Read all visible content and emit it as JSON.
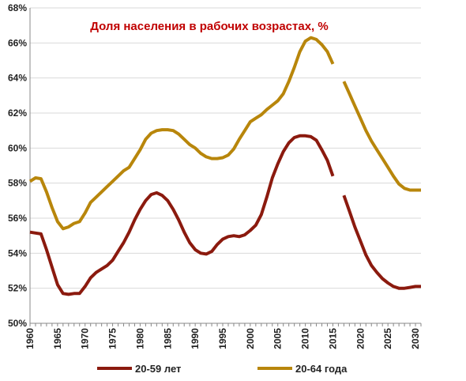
{
  "chart_data": {
    "type": "line",
    "title": "Доля населения в рабочих возрастах, %",
    "xlabel": "",
    "ylabel": "",
    "xlim": [
      1960,
      2031
    ],
    "ylim": [
      50,
      68
    ],
    "x_ticks": [
      1960,
      1965,
      1970,
      1975,
      1980,
      1985,
      1990,
      1995,
      2000,
      2005,
      2010,
      2015,
      2020,
      2025,
      2030
    ],
    "y_ticks": [
      50,
      52,
      54,
      56,
      58,
      60,
      62,
      64,
      66,
      68
    ],
    "y_tick_labels": [
      "50%",
      "52%",
      "54%",
      "56%",
      "58%",
      "60%",
      "62%",
      "64%",
      "66%",
      "68%"
    ],
    "grid": true,
    "legend_position": "bottom",
    "series": [
      {
        "name": "20-59 лет",
        "color": "#8B1A0E",
        "segments": [
          [
            [
              1960,
              55.2
            ],
            [
              1961,
              55.15
            ],
            [
              1962,
              55.1
            ],
            [
              1963,
              54.2
            ],
            [
              1964,
              53.2
            ],
            [
              1965,
              52.2
            ],
            [
              1966,
              51.7
            ],
            [
              1967,
              51.65
            ],
            [
              1968,
              51.7
            ],
            [
              1969,
              51.7
            ],
            [
              1970,
              52.1
            ],
            [
              1971,
              52.6
            ],
            [
              1972,
              52.9
            ],
            [
              1973,
              53.1
            ],
            [
              1974,
              53.3
            ],
            [
              1975,
              53.6
            ],
            [
              1976,
              54.1
            ],
            [
              1977,
              54.6
            ],
            [
              1978,
              55.2
            ],
            [
              1979,
              55.9
            ],
            [
              1980,
              56.5
            ],
            [
              1981,
              57.0
            ],
            [
              1982,
              57.35
            ],
            [
              1983,
              57.45
            ],
            [
              1984,
              57.3
            ],
            [
              1985,
              57.0
            ],
            [
              1986,
              56.5
            ],
            [
              1987,
              55.9
            ],
            [
              1988,
              55.2
            ],
            [
              1989,
              54.6
            ],
            [
              1990,
              54.2
            ],
            [
              1991,
              54.0
            ],
            [
              1992,
              53.95
            ],
            [
              1993,
              54.1
            ],
            [
              1994,
              54.5
            ],
            [
              1995,
              54.8
            ],
            [
              1996,
              54.95
            ],
            [
              1997,
              55.0
            ],
            [
              1998,
              54.95
            ],
            [
              1999,
              55.05
            ],
            [
              2000,
              55.3
            ],
            [
              2001,
              55.6
            ],
            [
              2002,
              56.2
            ],
            [
              2003,
              57.2
            ],
            [
              2004,
              58.3
            ],
            [
              2005,
              59.1
            ],
            [
              2006,
              59.8
            ],
            [
              2007,
              60.3
            ],
            [
              2008,
              60.6
            ],
            [
              2009,
              60.7
            ],
            [
              2010,
              60.7
            ],
            [
              2011,
              60.65
            ],
            [
              2012,
              60.45
            ],
            [
              2013,
              59.9
            ],
            [
              2014,
              59.3
            ],
            [
              2015,
              58.4
            ]
          ],
          [
            [
              2017,
              57.3
            ],
            [
              2018,
              56.4
            ],
            [
              2019,
              55.5
            ],
            [
              2020,
              54.7
            ],
            [
              2021,
              53.9
            ],
            [
              2022,
              53.3
            ],
            [
              2023,
              52.9
            ],
            [
              2024,
              52.55
            ],
            [
              2025,
              52.3
            ],
            [
              2026,
              52.1
            ],
            [
              2027,
              52.0
            ],
            [
              2028,
              52.0
            ],
            [
              2029,
              52.05
            ],
            [
              2030,
              52.1
            ],
            [
              2031,
              52.1
            ]
          ]
        ]
      },
      {
        "name": "20-64 года",
        "color": "#B8860B",
        "segments": [
          [
            [
              1960,
              58.1
            ],
            [
              1961,
              58.3
            ],
            [
              1962,
              58.25
            ],
            [
              1963,
              57.5
            ],
            [
              1964,
              56.6
            ],
            [
              1965,
              55.8
            ],
            [
              1966,
              55.4
            ],
            [
              1967,
              55.5
            ],
            [
              1968,
              55.7
            ],
            [
              1969,
              55.8
            ],
            [
              1970,
              56.3
            ],
            [
              1971,
              56.9
            ],
            [
              1972,
              57.2
            ],
            [
              1973,
              57.5
            ],
            [
              1974,
              57.8
            ],
            [
              1975,
              58.1
            ],
            [
              1976,
              58.4
            ],
            [
              1977,
              58.7
            ],
            [
              1978,
              58.9
            ],
            [
              1979,
              59.4
            ],
            [
              1980,
              59.9
            ],
            [
              1981,
              60.5
            ],
            [
              1982,
              60.85
            ],
            [
              1983,
              61.0
            ],
            [
              1984,
              61.05
            ],
            [
              1985,
              61.05
            ],
            [
              1986,
              61.0
            ],
            [
              1987,
              60.8
            ],
            [
              1988,
              60.5
            ],
            [
              1989,
              60.2
            ],
            [
              1990,
              60.0
            ],
            [
              1991,
              59.7
            ],
            [
              1992,
              59.5
            ],
            [
              1993,
              59.4
            ],
            [
              1994,
              59.4
            ],
            [
              1995,
              59.45
            ],
            [
              1996,
              59.6
            ],
            [
              1997,
              59.95
            ],
            [
              1998,
              60.5
            ],
            [
              1999,
              61.0
            ],
            [
              2000,
              61.5
            ],
            [
              2001,
              61.7
            ],
            [
              2002,
              61.9
            ],
            [
              2003,
              62.2
            ],
            [
              2004,
              62.45
            ],
            [
              2005,
              62.7
            ],
            [
              2006,
              63.1
            ],
            [
              2007,
              63.8
            ],
            [
              2008,
              64.6
            ],
            [
              2009,
              65.5
            ],
            [
              2010,
              66.1
            ],
            [
              2011,
              66.3
            ],
            [
              2012,
              66.2
            ],
            [
              2013,
              65.9
            ],
            [
              2014,
              65.5
            ],
            [
              2015,
              64.8
            ]
          ],
          [
            [
              2017,
              63.8
            ],
            [
              2018,
              63.1
            ],
            [
              2019,
              62.4
            ],
            [
              2020,
              61.7
            ],
            [
              2021,
              61.0
            ],
            [
              2022,
              60.4
            ],
            [
              2023,
              59.9
            ],
            [
              2024,
              59.4
            ],
            [
              2025,
              58.9
            ],
            [
              2026,
              58.4
            ],
            [
              2027,
              57.95
            ],
            [
              2028,
              57.7
            ],
            [
              2029,
              57.6
            ],
            [
              2030,
              57.6
            ],
            [
              2031,
              57.6
            ]
          ]
        ]
      }
    ]
  },
  "colors": {
    "title": "#C00000",
    "grid": "#D9D9D9",
    "axis": "#888888"
  }
}
